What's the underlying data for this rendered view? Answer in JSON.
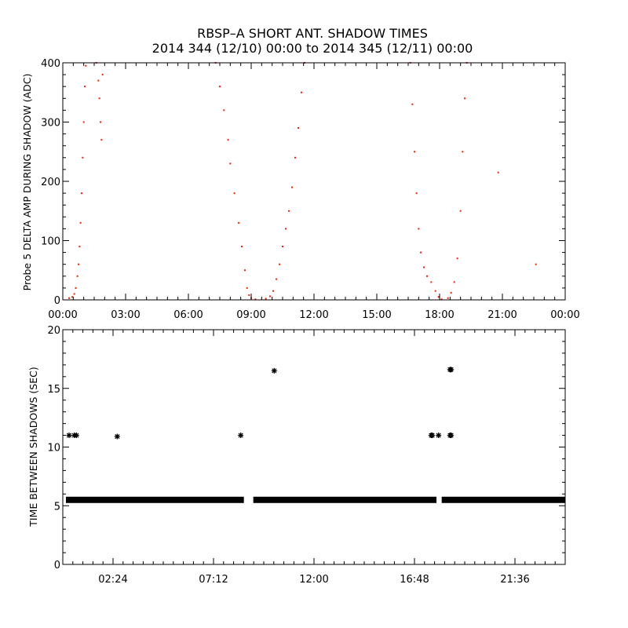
{
  "title_line1": "RBSP–A SHORT ANT. SHADOW TIMES",
  "title_line2": "2014 344 (12/10) 00:00 to 2014 345 (12/11) 00:00",
  "colors": {
    "top_points": "#ee2200",
    "bottom_points": "#000000",
    "axes": "#000000"
  },
  "chart_data": [
    {
      "type": "scatter",
      "ylabel": "Probe 5 DELTA AMP DURING SHADOW (ADC)",
      "xlim": [
        0,
        24
      ],
      "ylim": [
        0,
        400
      ],
      "x_unit": "hours",
      "x_tick_labels": [
        "00:00",
        "03:00",
        "06:00",
        "09:00",
        "12:00",
        "15:00",
        "18:00",
        "21:00",
        "00:00"
      ],
      "y_tick_labels": [
        "0",
        "100",
        "200",
        "300",
        "400"
      ],
      "series": [
        {
          "values": [
            [
              0.3,
              3
            ],
            [
              0.45,
              5
            ],
            [
              0.55,
              10
            ],
            [
              0.62,
              20
            ],
            [
              0.7,
              40
            ],
            [
              0.75,
              60
            ],
            [
              0.8,
              90
            ],
            [
              0.85,
              130
            ],
            [
              0.9,
              180
            ],
            [
              0.95,
              240
            ],
            [
              1.0,
              300
            ],
            [
              1.05,
              360
            ],
            [
              1.1,
              395
            ],
            [
              1.6,
              400
            ],
            [
              1.7,
              370
            ],
            [
              1.75,
              340
            ],
            [
              1.8,
              300
            ],
            [
              1.85,
              270
            ],
            [
              1.9,
              380
            ],
            [
              7.3,
              400
            ],
            [
              7.5,
              360
            ],
            [
              7.7,
              320
            ],
            [
              7.9,
              270
            ],
            [
              8.0,
              230
            ],
            [
              8.2,
              180
            ],
            [
              8.4,
              130
            ],
            [
              8.55,
              90
            ],
            [
              8.7,
              50
            ],
            [
              8.8,
              20
            ],
            [
              8.9,
              8
            ],
            [
              9.0,
              3
            ],
            [
              9.2,
              1
            ],
            [
              9.7,
              2
            ],
            [
              9.9,
              6
            ],
            [
              10.05,
              15
            ],
            [
              10.2,
              35
            ],
            [
              10.35,
              60
            ],
            [
              10.5,
              90
            ],
            [
              10.65,
              120
            ],
            [
              10.8,
              150
            ],
            [
              10.95,
              190
            ],
            [
              11.1,
              240
            ],
            [
              11.25,
              290
            ],
            [
              11.4,
              350
            ],
            [
              11.55,
              400
            ],
            [
              16.6,
              400
            ],
            [
              16.7,
              330
            ],
            [
              16.8,
              250
            ],
            [
              16.9,
              180
            ],
            [
              17.0,
              120
            ],
            [
              17.1,
              80
            ],
            [
              17.25,
              55
            ],
            [
              17.4,
              40
            ],
            [
              17.6,
              30
            ],
            [
              17.8,
              15
            ],
            [
              17.95,
              5
            ],
            [
              18.1,
              1
            ],
            [
              18.4,
              3
            ],
            [
              18.55,
              12
            ],
            [
              18.7,
              30
            ],
            [
              18.85,
              70
            ],
            [
              19.0,
              150
            ],
            [
              19.1,
              250
            ],
            [
              19.2,
              340
            ],
            [
              19.3,
              400
            ],
            [
              20.8,
              215
            ],
            [
              22.6,
              60
            ]
          ]
        }
      ]
    },
    {
      "type": "scatter",
      "ylabel": "TIME BETWEEN SHADOWS (SEC)",
      "xlim": [
        0,
        24
      ],
      "ylim": [
        0,
        20
      ],
      "x_unit": "hours",
      "x_tick_labels": [
        "02:24",
        "07:12",
        "12:00",
        "16:48",
        "21:36"
      ],
      "y_tick_labels": [
        "0",
        "5",
        "10",
        "15",
        "20"
      ],
      "baseline": {
        "value": 5.5,
        "from": 0.15,
        "to": 24,
        "gaps": [
          [
            8.65,
            9.1
          ],
          [
            17.85,
            18.1
          ]
        ]
      },
      "series": [
        {
          "values": [
            [
              0.3,
              11
            ],
            [
              0.55,
              11
            ],
            [
              0.65,
              11
            ],
            [
              2.6,
              10.9
            ],
            [
              8.5,
              11
            ],
            [
              10.1,
              16.5
            ],
            [
              17.6,
              11
            ],
            [
              17.65,
              11
            ],
            [
              17.95,
              11
            ],
            [
              18.5,
              11
            ],
            [
              18.55,
              11
            ],
            [
              18.5,
              16.6
            ],
            [
              18.55,
              16.6
            ]
          ]
        }
      ]
    }
  ]
}
